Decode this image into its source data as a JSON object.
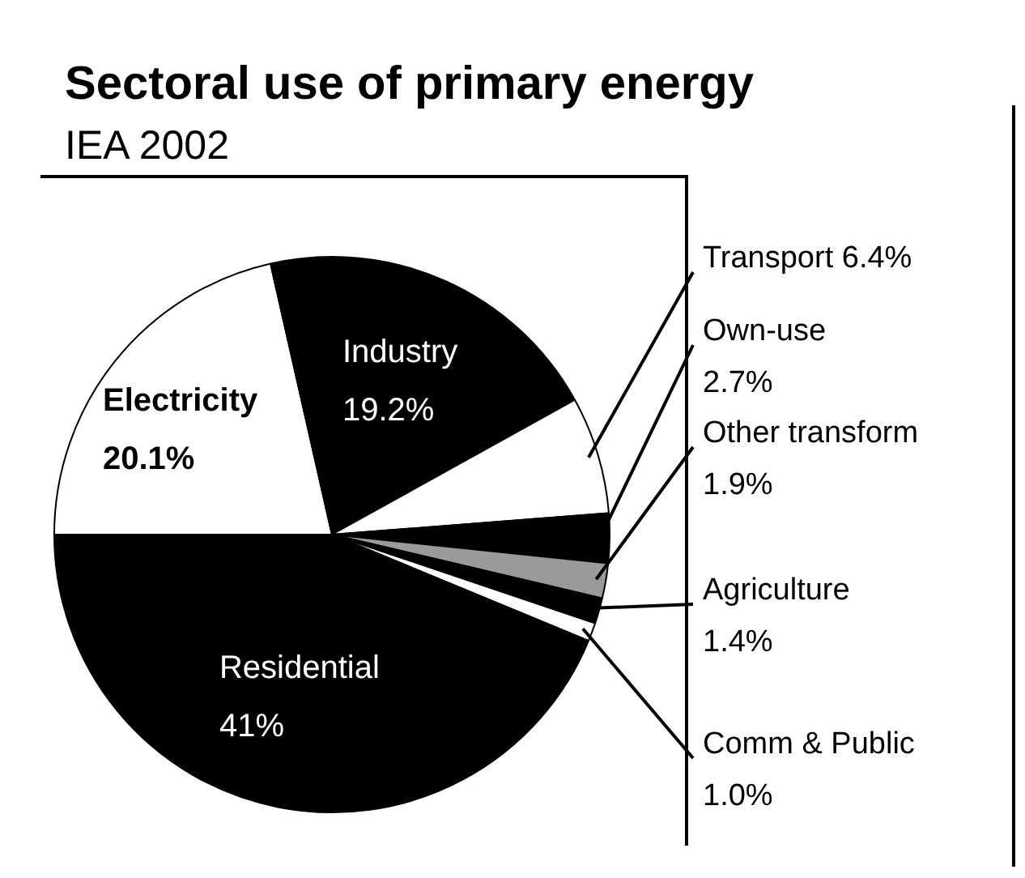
{
  "chart_data": {
    "type": "pie",
    "title": "Sectoral use of primary energy",
    "subtitle": "IEA 2002",
    "categories": [
      "Electricity",
      "Industry",
      "Transport",
      "Own-use",
      "Other transform",
      "Agriculture",
      "Comm & Public",
      "Residential"
    ],
    "values": [
      20.1,
      19.2,
      6.4,
      2.7,
      1.9,
      1.4,
      1.0,
      41
    ],
    "value_labels": [
      "20.1%",
      "19.2%",
      "6.4%",
      "2.7%",
      "1.9%",
      "1.4%",
      "1.0%",
      "41%"
    ],
    "colors": [
      "#ffffff",
      "#000000",
      "#ffffff",
      "#000000",
      "#9a9a9a",
      "#000000",
      "#ffffff",
      "#000000"
    ],
    "legend": false
  }
}
